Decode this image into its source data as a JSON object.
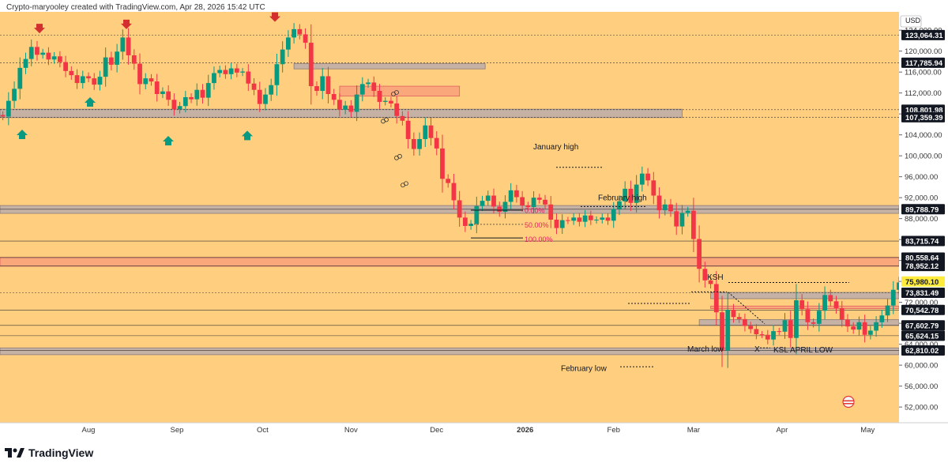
{
  "header": {
    "attribution": "Crypto-maryooley created with TradingView.com, Apr 28, 2026 15:42 UTC"
  },
  "footer": {
    "brand": "TradingView"
  },
  "colors": {
    "background": "#ffcf7f",
    "up": "#089981",
    "down": "#f23645",
    "zone_gray": "#bcadaa",
    "zone_red": "#f8a07a",
    "current_price_tag": "#ffeb3b"
  },
  "chart_data": {
    "type": "candlestick",
    "currency_label": "USD",
    "ylim": [
      49000,
      127500
    ],
    "x_ticks": [
      {
        "label": "Aug",
        "date": "2025-08-01"
      },
      {
        "label": "Sep",
        "date": "2025-09-01"
      },
      {
        "label": "Oct",
        "date": "2025-10-01"
      },
      {
        "label": "Nov",
        "date": "2025-11-01"
      },
      {
        "label": "Dec",
        "date": "2025-12-01"
      },
      {
        "label": "2026",
        "date": "2026-01-01"
      },
      {
        "label": "Feb",
        "date": "2026-02-01"
      },
      {
        "label": "Mar",
        "date": "2026-03-01"
      },
      {
        "label": "Apr",
        "date": "2026-04-01"
      },
      {
        "label": "May",
        "date": "2026-05-01"
      }
    ],
    "x_range": [
      "2025-07-01",
      "2026-05-12"
    ],
    "y_ticks": [
      52000,
      56000,
      60000,
      64000,
      68000,
      72000,
      76000,
      80000,
      84000,
      88000,
      92000,
      96000,
      100000,
      104000,
      108000,
      112000,
      116000,
      120000,
      124000
    ],
    "y_tick_labels": [
      "52,000.00",
      "56,000.00",
      "60,000.00",
      "64,000.00",
      "68,000.00",
      "72,000.00",
      "76,000.00",
      "80,000.00",
      "84,000.00",
      "88,000.00",
      "92,000.00",
      "96,000.00",
      "100,000.00",
      "104,000.00",
      "108,000.00",
      "112,000.00",
      "116,000.00",
      "120,000.00",
      "124,000.00"
    ],
    "price_tags": [
      {
        "value": 123064.31,
        "label": "123,064.31",
        "style": "dark"
      },
      {
        "value": 117785.94,
        "label": "117,785.94",
        "style": "dark"
      },
      {
        "value": 108801.98,
        "label": "108,801.98",
        "style": "dark"
      },
      {
        "value": 107359.39,
        "label": "107,359.39",
        "style": "dark"
      },
      {
        "value": 89788.79,
        "label": "89,788.79",
        "style": "dark"
      },
      {
        "value": 83715.74,
        "label": "83,715.74",
        "style": "dark"
      },
      {
        "value": 80558.64,
        "label": "80,558.64",
        "style": "dark"
      },
      {
        "value": 78952.12,
        "label": "78,952.12",
        "style": "dark"
      },
      {
        "value": 75980.1,
        "label": "75,980.10",
        "style": "current"
      },
      {
        "value": 73831.49,
        "label": "73,831.49",
        "style": "dark"
      },
      {
        "value": 70542.78,
        "label": "70,542.78",
        "style": "dark"
      },
      {
        "value": 67602.79,
        "label": "67,602.79",
        "style": "dark"
      },
      {
        "value": 65624.15,
        "label": "65,624.15",
        "style": "dark"
      },
      {
        "value": 62810.02,
        "label": "62,810.02",
        "style": "dark"
      }
    ],
    "closes": [
      [
        1,
        107500
      ],
      [
        3,
        110500
      ],
      [
        5,
        112800
      ],
      [
        7,
        116800
      ],
      [
        9,
        118500
      ],
      [
        11,
        120800
      ],
      [
        13,
        119300
      ],
      [
        15,
        119700
      ],
      [
        17,
        118400
      ],
      [
        19,
        119000
      ],
      [
        21,
        117900
      ],
      [
        23,
        116200
      ],
      [
        25,
        115400
      ],
      [
        27,
        113900
      ],
      [
        29,
        115200
      ],
      [
        31,
        114800
      ],
      [
        33,
        113600
      ],
      [
        35,
        115100
      ],
      [
        37,
        118800
      ],
      [
        39,
        117400
      ],
      [
        41,
        119900
      ],
      [
        43,
        122600
      ],
      [
        45,
        119200
      ],
      [
        47,
        117600
      ],
      [
        49,
        113700
      ],
      [
        51,
        114800
      ],
      [
        53,
        114200
      ],
      [
        55,
        111800
      ],
      [
        57,
        112300
      ],
      [
        59,
        110700
      ],
      [
        61,
        108900
      ],
      [
        63,
        109500
      ],
      [
        65,
        111200
      ],
      [
        67,
        110800
      ],
      [
        69,
        112600
      ],
      [
        71,
        111100
      ],
      [
        73,
        113900
      ],
      [
        75,
        115800
      ],
      [
        77,
        116400
      ],
      [
        79,
        115600
      ],
      [
        81,
        116700
      ],
      [
        83,
        115900
      ],
      [
        85,
        116100
      ],
      [
        87,
        113800
      ],
      [
        89,
        112600
      ],
      [
        91,
        109900
      ],
      [
        93,
        111700
      ],
      [
        95,
        113500
      ],
      [
        97,
        117500
      ],
      [
        99,
        120300
      ],
      [
        101,
        122600
      ],
      [
        103,
        124200
      ],
      [
        105,
        123200
      ],
      [
        107,
        121600
      ],
      [
        109,
        113300
      ],
      [
        111,
        112400
      ],
      [
        113,
        115200
      ],
      [
        115,
        111800
      ],
      [
        117,
        110700
      ],
      [
        119,
        108800
      ],
      [
        121,
        109600
      ],
      [
        123,
        108400
      ],
      [
        125,
        111700
      ],
      [
        127,
        113700
      ],
      [
        129,
        114000
      ],
      [
        131,
        112400
      ],
      [
        133,
        110300
      ],
      [
        135,
        110500
      ],
      [
        137,
        110000
      ],
      [
        139,
        107600
      ],
      [
        141,
        106700
      ],
      [
        143,
        103200
      ],
      [
        145,
        101300
      ],
      [
        147,
        103200
      ],
      [
        149,
        105800
      ],
      [
        151,
        103400
      ],
      [
        153,
        101400
      ],
      [
        155,
        95600
      ],
      [
        157,
        94800
      ],
      [
        159,
        91500
      ],
      [
        161,
        88200
      ],
      [
        163,
        86600
      ],
      [
        165,
        87000
      ],
      [
        167,
        90400
      ],
      [
        169,
        91400
      ],
      [
        171,
        92400
      ],
      [
        173,
        90300
      ],
      [
        175,
        89300
      ],
      [
        177,
        91200
      ],
      [
        179,
        93400
      ],
      [
        181,
        92100
      ],
      [
        183,
        90500
      ],
      [
        185,
        90200
      ],
      [
        187,
        92000
      ],
      [
        189,
        91600
      ],
      [
        191,
        90700
      ],
      [
        193,
        87800
      ],
      [
        195,
        86200
      ],
      [
        197,
        87700
      ],
      [
        199,
        87600
      ],
      [
        201,
        88200
      ],
      [
        203,
        87400
      ],
      [
        205,
        88600
      ],
      [
        207,
        87700
      ],
      [
        209,
        87800
      ],
      [
        211,
        88200
      ],
      [
        213,
        87600
      ],
      [
        215,
        89800
      ],
      [
        217,
        91300
      ],
      [
        219,
        93700
      ],
      [
        221,
        91000
      ],
      [
        223,
        94500
      ],
      [
        225,
        96600
      ],
      [
        227,
        95300
      ],
      [
        229,
        92400
      ],
      [
        231,
        89600
      ],
      [
        233,
        90700
      ],
      [
        235,
        89400
      ],
      [
        237,
        86500
      ],
      [
        239,
        89100
      ],
      [
        241,
        89500
      ],
      [
        243,
        84100
      ],
      [
        245,
        78400
      ],
      [
        247,
        76200
      ],
      [
        249,
        75500
      ],
      [
        251,
        70100
      ],
      [
        253,
        62800
      ],
      [
        255,
        70600
      ],
      [
        257,
        69200
      ],
      [
        259,
        68800
      ],
      [
        261,
        67500
      ],
      [
        263,
        66900
      ],
      [
        265,
        65900
      ],
      [
        267,
        65800
      ],
      [
        269,
        64900
      ],
      [
        271,
        66500
      ],
      [
        273,
        66400
      ],
      [
        275,
        68600
      ],
      [
        277,
        65200
      ],
      [
        279,
        72400
      ],
      [
        281,
        70700
      ],
      [
        283,
        68200
      ],
      [
        285,
        67900
      ],
      [
        287,
        70400
      ],
      [
        289,
        73400
      ],
      [
        291,
        72200
      ],
      [
        293,
        70900
      ],
      [
        295,
        68700
      ],
      [
        297,
        67400
      ],
      [
        299,
        66800
      ],
      [
        301,
        68200
      ],
      [
        303,
        65800
      ],
      [
        305,
        66600
      ],
      [
        307,
        68200
      ],
      [
        309,
        69500
      ],
      [
        311,
        71400
      ],
      [
        313,
        74400
      ],
      [
        315,
        75800
      ],
      [
        317,
        76800
      ],
      [
        319,
        77900
      ],
      [
        321,
        78500
      ],
      [
        323,
        76900
      ],
      [
        325,
        77600
      ],
      [
        327,
        76900
      ],
      [
        329,
        77500
      ],
      [
        331,
        75900
      ]
    ],
    "zones": [
      {
        "y0": 116600,
        "y1": 117600,
        "x0": "2025-10-12",
        "x1": "2025-12-18",
        "color": "gray"
      },
      {
        "y0": 111400,
        "y1": 113300,
        "x0": "2025-10-28",
        "x1": "2025-12-09",
        "color": "red"
      },
      {
        "y0": 107300,
        "y1": 108900,
        "x0": "2025-07-01",
        "x1": "2026-02-25",
        "color": "gray"
      },
      {
        "y0": 89000,
        "y1": 90500,
        "x0": "2025-07-01",
        "x1": "2026-05-12",
        "color": "gray"
      },
      {
        "y0": 78900,
        "y1": 80600,
        "x0": "2025-07-01",
        "x1": "2026-05-12",
        "color": "red"
      },
      {
        "y0": 72700,
        "y1": 73900,
        "x0": "2026-03-07",
        "x1": "2026-05-12",
        "color": "gray"
      },
      {
        "y0": 70800,
        "y1": 71300,
        "x0": "2026-03-07",
        "x1": "2026-05-12",
        "color": "red"
      },
      {
        "y0": 67600,
        "y1": 68700,
        "x0": "2026-03-03",
        "x1": "2026-05-12",
        "color": "gray"
      },
      {
        "y0": 62000,
        "y1": 63300,
        "x0": "2025-07-01",
        "x1": "2026-05-12",
        "color": "gray"
      }
    ],
    "annotations": {
      "january_high": "January high",
      "february_high": "February high",
      "fib_0": "0.00%",
      "fib_50": "50.00%",
      "fib_100": "100.00%",
      "ksh": "KSH",
      "march_low": "March low",
      "x_label": "X",
      "ksl": "KSL",
      "april_low": "APRIL LOW",
      "february_low": "February low"
    }
  }
}
